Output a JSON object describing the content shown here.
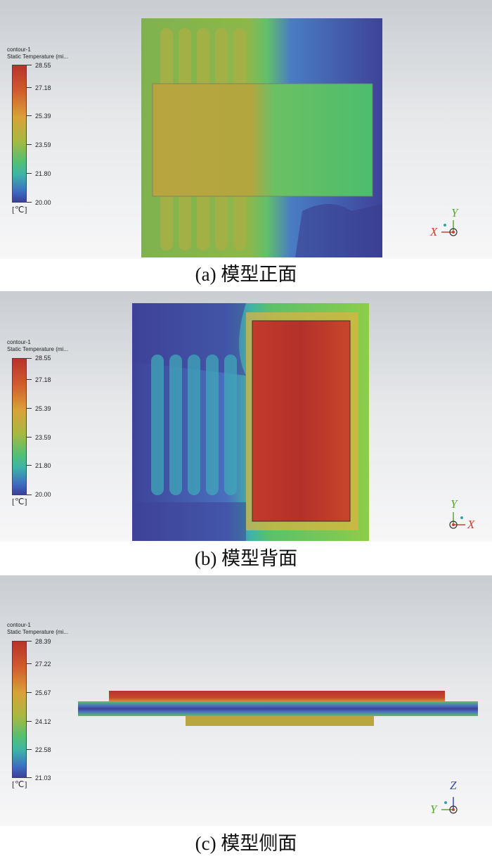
{
  "panels": [
    {
      "caption": "(a)  模型正面",
      "legend": {
        "title1": "contour-1",
        "title2": "Static Temperature (mi...",
        "ticks": [
          "28.55",
          "27.18",
          "25.39",
          "23.59",
          "21.80",
          "20.00"
        ],
        "unit": "[℃]"
      },
      "triad": {
        "up": "Y",
        "side": "X"
      }
    },
    {
      "caption": "(b)  模型背面",
      "legend": {
        "title1": "contour-1",
        "title2": "Static Temperature (mi...",
        "ticks": [
          "28.55",
          "27.18",
          "25.39",
          "23.59",
          "21.80",
          "20.00"
        ],
        "unit": "[℃]"
      },
      "triad": {
        "up": "Y",
        "side": "X"
      }
    },
    {
      "caption": "(c)  模型侧面",
      "legend": {
        "title1": "contour-1",
        "title2": "Static Temperature (mi...",
        "ticks": [
          "28.39",
          "27.22",
          "25.67",
          "24.12",
          "22.58",
          "21.03"
        ],
        "unit": "[℃]"
      },
      "triad": {
        "up": "Z",
        "side": "Y"
      }
    }
  ],
  "colors": {
    "hot": "#b8332a",
    "warm": "#c9a53c",
    "mid": "#5cc06a",
    "cool": "#4a67b8",
    "cold": "#3e3f98"
  }
}
